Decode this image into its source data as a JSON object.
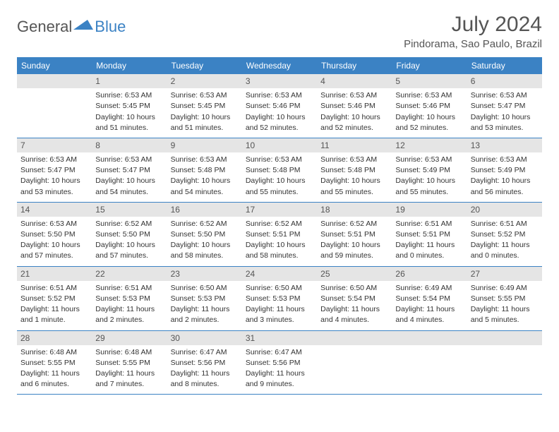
{
  "brand": {
    "part1": "General",
    "part2": "Blue"
  },
  "title": "July 2024",
  "location": "Pindorama, Sao Paulo, Brazil",
  "colors": {
    "header_bar": "#3b82c4",
    "day_band": "#e5e5e5",
    "text": "#333333",
    "muted": "#555555",
    "background": "#ffffff"
  },
  "daysOfWeek": [
    "Sunday",
    "Monday",
    "Tuesday",
    "Wednesday",
    "Thursday",
    "Friday",
    "Saturday"
  ],
  "weeks": [
    [
      {
        "num": "",
        "sunrise": "",
        "sunset": "",
        "daylight1": "",
        "daylight2": ""
      },
      {
        "num": "1",
        "sunrise": "Sunrise: 6:53 AM",
        "sunset": "Sunset: 5:45 PM",
        "daylight1": "Daylight: 10 hours",
        "daylight2": "and 51 minutes."
      },
      {
        "num": "2",
        "sunrise": "Sunrise: 6:53 AM",
        "sunset": "Sunset: 5:45 PM",
        "daylight1": "Daylight: 10 hours",
        "daylight2": "and 51 minutes."
      },
      {
        "num": "3",
        "sunrise": "Sunrise: 6:53 AM",
        "sunset": "Sunset: 5:46 PM",
        "daylight1": "Daylight: 10 hours",
        "daylight2": "and 52 minutes."
      },
      {
        "num": "4",
        "sunrise": "Sunrise: 6:53 AM",
        "sunset": "Sunset: 5:46 PM",
        "daylight1": "Daylight: 10 hours",
        "daylight2": "and 52 minutes."
      },
      {
        "num": "5",
        "sunrise": "Sunrise: 6:53 AM",
        "sunset": "Sunset: 5:46 PM",
        "daylight1": "Daylight: 10 hours",
        "daylight2": "and 52 minutes."
      },
      {
        "num": "6",
        "sunrise": "Sunrise: 6:53 AM",
        "sunset": "Sunset: 5:47 PM",
        "daylight1": "Daylight: 10 hours",
        "daylight2": "and 53 minutes."
      }
    ],
    [
      {
        "num": "7",
        "sunrise": "Sunrise: 6:53 AM",
        "sunset": "Sunset: 5:47 PM",
        "daylight1": "Daylight: 10 hours",
        "daylight2": "and 53 minutes."
      },
      {
        "num": "8",
        "sunrise": "Sunrise: 6:53 AM",
        "sunset": "Sunset: 5:47 PM",
        "daylight1": "Daylight: 10 hours",
        "daylight2": "and 54 minutes."
      },
      {
        "num": "9",
        "sunrise": "Sunrise: 6:53 AM",
        "sunset": "Sunset: 5:48 PM",
        "daylight1": "Daylight: 10 hours",
        "daylight2": "and 54 minutes."
      },
      {
        "num": "10",
        "sunrise": "Sunrise: 6:53 AM",
        "sunset": "Sunset: 5:48 PM",
        "daylight1": "Daylight: 10 hours",
        "daylight2": "and 55 minutes."
      },
      {
        "num": "11",
        "sunrise": "Sunrise: 6:53 AM",
        "sunset": "Sunset: 5:48 PM",
        "daylight1": "Daylight: 10 hours",
        "daylight2": "and 55 minutes."
      },
      {
        "num": "12",
        "sunrise": "Sunrise: 6:53 AM",
        "sunset": "Sunset: 5:49 PM",
        "daylight1": "Daylight: 10 hours",
        "daylight2": "and 55 minutes."
      },
      {
        "num": "13",
        "sunrise": "Sunrise: 6:53 AM",
        "sunset": "Sunset: 5:49 PM",
        "daylight1": "Daylight: 10 hours",
        "daylight2": "and 56 minutes."
      }
    ],
    [
      {
        "num": "14",
        "sunrise": "Sunrise: 6:53 AM",
        "sunset": "Sunset: 5:50 PM",
        "daylight1": "Daylight: 10 hours",
        "daylight2": "and 57 minutes."
      },
      {
        "num": "15",
        "sunrise": "Sunrise: 6:52 AM",
        "sunset": "Sunset: 5:50 PM",
        "daylight1": "Daylight: 10 hours",
        "daylight2": "and 57 minutes."
      },
      {
        "num": "16",
        "sunrise": "Sunrise: 6:52 AM",
        "sunset": "Sunset: 5:50 PM",
        "daylight1": "Daylight: 10 hours",
        "daylight2": "and 58 minutes."
      },
      {
        "num": "17",
        "sunrise": "Sunrise: 6:52 AM",
        "sunset": "Sunset: 5:51 PM",
        "daylight1": "Daylight: 10 hours",
        "daylight2": "and 58 minutes."
      },
      {
        "num": "18",
        "sunrise": "Sunrise: 6:52 AM",
        "sunset": "Sunset: 5:51 PM",
        "daylight1": "Daylight: 10 hours",
        "daylight2": "and 59 minutes."
      },
      {
        "num": "19",
        "sunrise": "Sunrise: 6:51 AM",
        "sunset": "Sunset: 5:51 PM",
        "daylight1": "Daylight: 11 hours",
        "daylight2": "and 0 minutes."
      },
      {
        "num": "20",
        "sunrise": "Sunrise: 6:51 AM",
        "sunset": "Sunset: 5:52 PM",
        "daylight1": "Daylight: 11 hours",
        "daylight2": "and 0 minutes."
      }
    ],
    [
      {
        "num": "21",
        "sunrise": "Sunrise: 6:51 AM",
        "sunset": "Sunset: 5:52 PM",
        "daylight1": "Daylight: 11 hours",
        "daylight2": "and 1 minute."
      },
      {
        "num": "22",
        "sunrise": "Sunrise: 6:51 AM",
        "sunset": "Sunset: 5:53 PM",
        "daylight1": "Daylight: 11 hours",
        "daylight2": "and 2 minutes."
      },
      {
        "num": "23",
        "sunrise": "Sunrise: 6:50 AM",
        "sunset": "Sunset: 5:53 PM",
        "daylight1": "Daylight: 11 hours",
        "daylight2": "and 2 minutes."
      },
      {
        "num": "24",
        "sunrise": "Sunrise: 6:50 AM",
        "sunset": "Sunset: 5:53 PM",
        "daylight1": "Daylight: 11 hours",
        "daylight2": "and 3 minutes."
      },
      {
        "num": "25",
        "sunrise": "Sunrise: 6:50 AM",
        "sunset": "Sunset: 5:54 PM",
        "daylight1": "Daylight: 11 hours",
        "daylight2": "and 4 minutes."
      },
      {
        "num": "26",
        "sunrise": "Sunrise: 6:49 AM",
        "sunset": "Sunset: 5:54 PM",
        "daylight1": "Daylight: 11 hours",
        "daylight2": "and 4 minutes."
      },
      {
        "num": "27",
        "sunrise": "Sunrise: 6:49 AM",
        "sunset": "Sunset: 5:55 PM",
        "daylight1": "Daylight: 11 hours",
        "daylight2": "and 5 minutes."
      }
    ],
    [
      {
        "num": "28",
        "sunrise": "Sunrise: 6:48 AM",
        "sunset": "Sunset: 5:55 PM",
        "daylight1": "Daylight: 11 hours",
        "daylight2": "and 6 minutes."
      },
      {
        "num": "29",
        "sunrise": "Sunrise: 6:48 AM",
        "sunset": "Sunset: 5:55 PM",
        "daylight1": "Daylight: 11 hours",
        "daylight2": "and 7 minutes."
      },
      {
        "num": "30",
        "sunrise": "Sunrise: 6:47 AM",
        "sunset": "Sunset: 5:56 PM",
        "daylight1": "Daylight: 11 hours",
        "daylight2": "and 8 minutes."
      },
      {
        "num": "31",
        "sunrise": "Sunrise: 6:47 AM",
        "sunset": "Sunset: 5:56 PM",
        "daylight1": "Daylight: 11 hours",
        "daylight2": "and 9 minutes."
      },
      {
        "num": "",
        "sunrise": "",
        "sunset": "",
        "daylight1": "",
        "daylight2": ""
      },
      {
        "num": "",
        "sunrise": "",
        "sunset": "",
        "daylight1": "",
        "daylight2": ""
      },
      {
        "num": "",
        "sunrise": "",
        "sunset": "",
        "daylight1": "",
        "daylight2": ""
      }
    ]
  ]
}
